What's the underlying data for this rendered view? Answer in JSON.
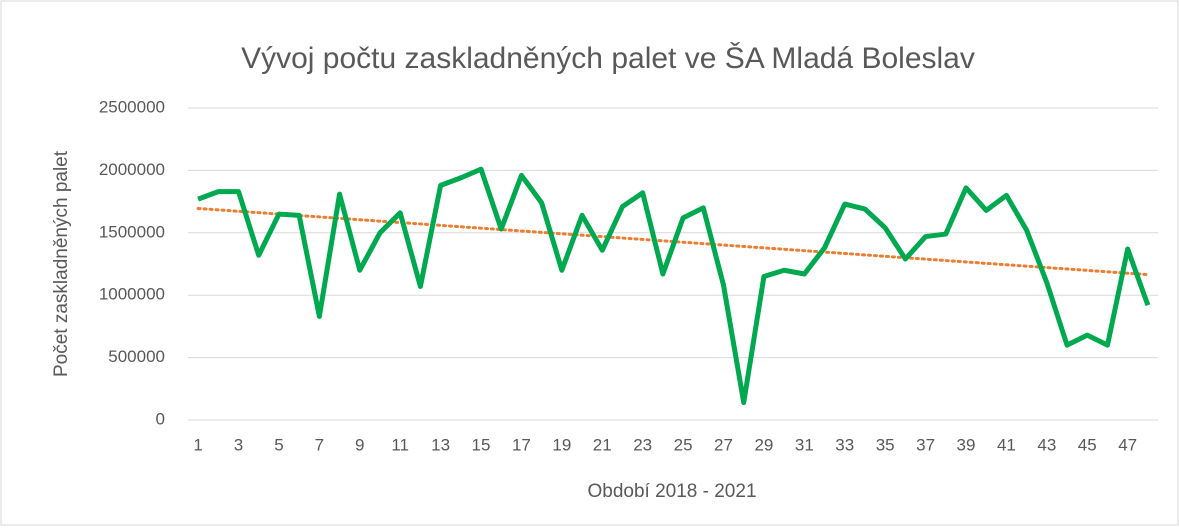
{
  "chart_data": {
    "type": "line",
    "title": "Vývoj počtu zaskladněných palet ve ŠA Mladá Boleslav",
    "xlabel": "Období 2018 - 2021",
    "ylabel": "Počet zaskladněných palet",
    "x": [
      1,
      2,
      3,
      4,
      5,
      6,
      7,
      8,
      9,
      10,
      11,
      12,
      13,
      14,
      15,
      16,
      17,
      18,
      19,
      20,
      21,
      22,
      23,
      24,
      25,
      26,
      27,
      28,
      29,
      30,
      31,
      32,
      33,
      34,
      35,
      36,
      37,
      38,
      39,
      40,
      41,
      42,
      43,
      44,
      45,
      46,
      47,
      48
    ],
    "series": [
      {
        "color": "#00a94f",
        "values": [
          1770000,
          1830000,
          1830000,
          1320000,
          1650000,
          1640000,
          830000,
          1810000,
          1200000,
          1500000,
          1660000,
          1070000,
          1880000,
          1940000,
          2010000,
          1530000,
          1960000,
          1740000,
          1200000,
          1640000,
          1360000,
          1710000,
          1820000,
          1170000,
          1620000,
          1700000,
          1080000,
          140000,
          1150000,
          1200000,
          1170000,
          1380000,
          1730000,
          1690000,
          1540000,
          1290000,
          1470000,
          1490000,
          1860000,
          1680000,
          1800000,
          1520000,
          1100000,
          600000,
          680000,
          600000,
          1370000,
          920000
        ]
      }
    ],
    "trendline": {
      "color": "#ed7d31",
      "x": [
        1,
        48
      ],
      "values": [
        1695000,
        1165000
      ]
    },
    "xlim": [
      0.5,
      48.5
    ],
    "xticks": [
      1,
      3,
      5,
      7,
      9,
      11,
      13,
      15,
      17,
      19,
      21,
      23,
      25,
      27,
      29,
      31,
      33,
      35,
      37,
      39,
      41,
      43,
      45,
      47
    ],
    "ylim": [
      0,
      2500000
    ],
    "yticks": [
      0,
      500000,
      1000000,
      1500000,
      2000000,
      2500000
    ],
    "grid": true
  }
}
